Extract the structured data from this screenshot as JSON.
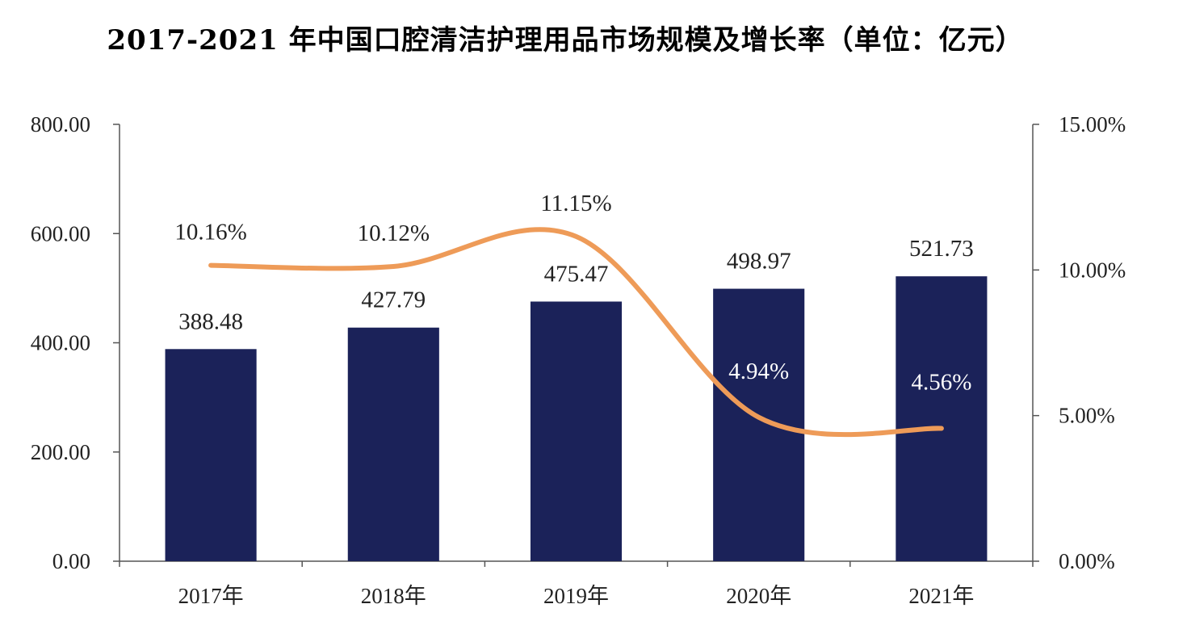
{
  "chart_data": {
    "type": "bar+line",
    "title": "2017-2021 年中国口腔清洁护理用品市场规模及增长率（单位：亿元）",
    "categories": [
      "2017年",
      "2018年",
      "2019年",
      "2020年",
      "2021年"
    ],
    "series": [
      {
        "name": "市场规模",
        "type": "bar",
        "axis": "left",
        "values": [
          388.48,
          427.79,
          475.47,
          498.97,
          521.73
        ],
        "labels": [
          "388.48",
          "427.79",
          "475.47",
          "498.97",
          "521.73"
        ],
        "color": "#1b2259"
      },
      {
        "name": "增长率",
        "type": "line",
        "axis": "right",
        "values": [
          10.16,
          10.12,
          11.15,
          4.94,
          4.56
        ],
        "labels": [
          "10.16%",
          "10.12%",
          "11.15%",
          "4.94%",
          "4.56%"
        ],
        "color": "#ee9b58"
      }
    ],
    "y_left": {
      "ylim": [
        0,
        800
      ],
      "ticks": [
        0,
        200,
        400,
        600,
        800
      ],
      "tick_labels": [
        "0.00",
        "200.00",
        "400.00",
        "600.00",
        "800.00"
      ]
    },
    "y_right": {
      "ylim": [
        0,
        15
      ],
      "ticks": [
        0,
        5,
        10,
        15
      ],
      "tick_labels": [
        "0.00%",
        "5.00%",
        "10.00%",
        "15.00%"
      ]
    },
    "grid": false,
    "legend": "none"
  }
}
